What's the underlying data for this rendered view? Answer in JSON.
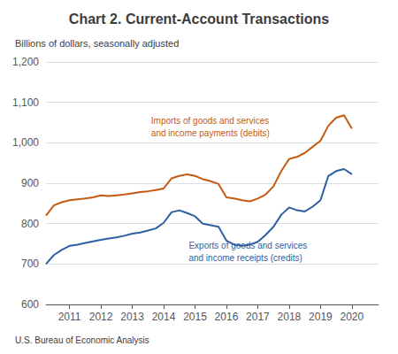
{
  "chart_data": {
    "type": "line",
    "title": "Chart 2. Current-Account Transactions",
    "subtitle": "Billions of dollars, seasonally adjusted",
    "footer": "U.S. Bureau of Economic Analysis",
    "x": [
      2010.25,
      2010.5,
      2010.75,
      2011,
      2011.25,
      2011.5,
      2011.75,
      2012,
      2012.25,
      2012.5,
      2012.75,
      2013,
      2013.25,
      2013.5,
      2013.75,
      2014,
      2014.25,
      2014.5,
      2014.75,
      2015,
      2015.25,
      2015.5,
      2015.75,
      2016,
      2016.25,
      2016.5,
      2016.75,
      2017,
      2017.25,
      2017.5,
      2017.75,
      2018,
      2018.25,
      2018.5,
      2018.75,
      2019,
      2019.25,
      2019.5,
      2019.75,
      2020
    ],
    "series": [
      {
        "color": "#c55a11",
        "values": [
          820,
          845,
          853,
          858,
          860,
          862,
          865,
          870,
          868,
          870,
          872,
          875,
          878,
          880,
          883,
          887,
          912,
          918,
          922,
          918,
          910,
          905,
          898,
          865,
          862,
          858,
          855,
          862,
          872,
          892,
          930,
          960,
          965,
          975,
          990,
          1005,
          1042,
          1062,
          1068,
          1035
        ]
      },
      {
        "color": "#2e5fa3",
        "values": [
          700,
          722,
          735,
          745,
          748,
          752,
          756,
          760,
          763,
          766,
          770,
          775,
          778,
          783,
          788,
          802,
          828,
          833,
          826,
          818,
          800,
          796,
          792,
          758,
          748,
          745,
          748,
          755,
          772,
          792,
          822,
          840,
          833,
          830,
          842,
          858,
          918,
          930,
          935,
          922
        ]
      }
    ],
    "xlim": [
      2010.25,
      2020.85
    ],
    "xticks": [
      2011,
      2012,
      2013,
      2014,
      2015,
      2016,
      2017,
      2018,
      2019,
      2020
    ],
    "ylim": [
      600,
      1200
    ],
    "yticks": [
      600,
      700,
      800,
      900,
      {
        "value": 1000,
        "label": "1,000"
      },
      {
        "value": 1100,
        "label": "1,100"
      },
      {
        "value": 1200,
        "label": "1,200"
      }
    ],
    "grid": true,
    "annotations": [
      {
        "text": "Imports of goods and services\nand income payments (debits)",
        "x": 2013.6,
        "y": 1070,
        "color": "#c55a11"
      },
      {
        "text": "Exports of goods and services\nand income receipts (credits)",
        "x": 2014.8,
        "y": 760,
        "color": "#2e5fa3"
      }
    ]
  }
}
